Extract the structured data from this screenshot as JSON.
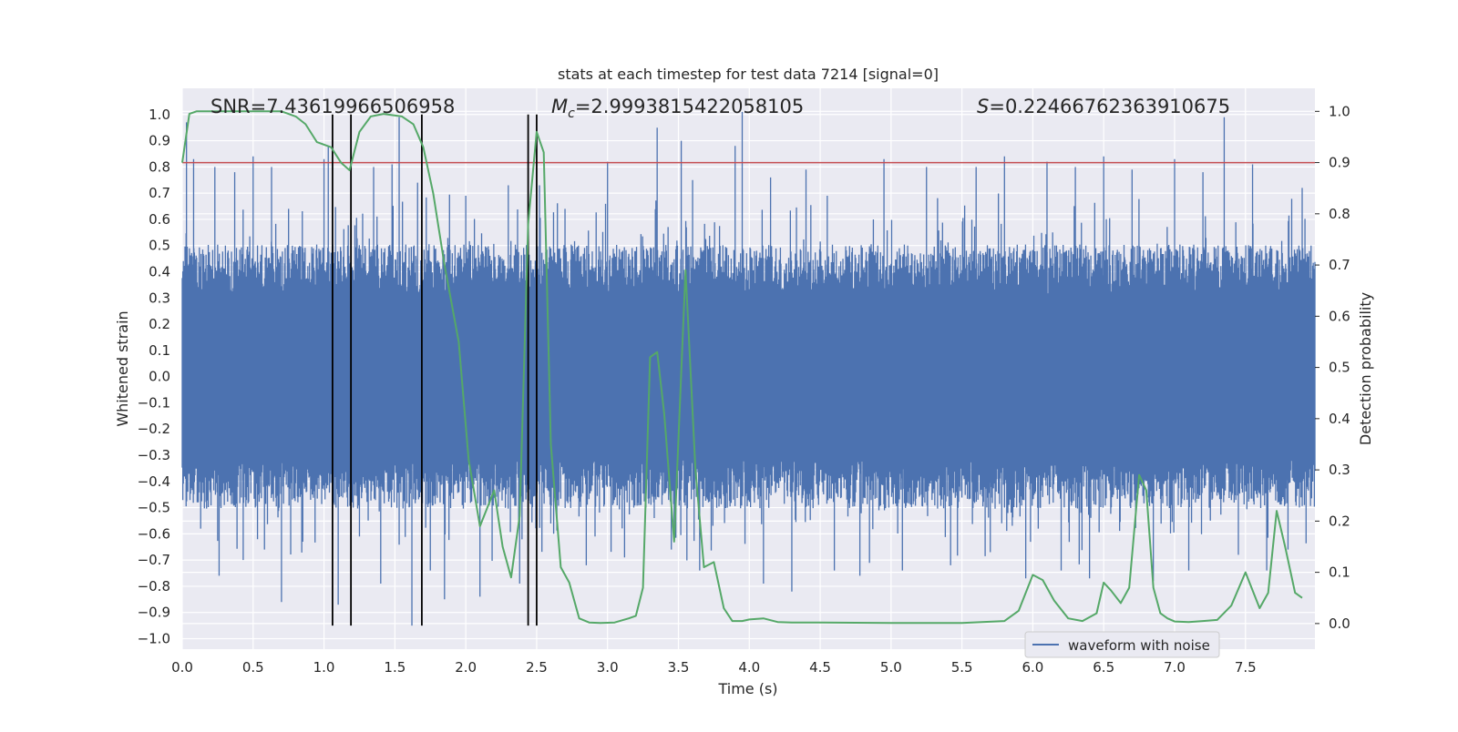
{
  "chart_data": {
    "type": "line",
    "title": "stats at each timestep for test data 7214 [signal=0]",
    "xlabel": "Time (s)",
    "ylabel": "Whitened strain",
    "y2label": "Detection probability",
    "xlim": [
      0,
      7.99
    ],
    "ylim": [
      -1.04,
      1.1
    ],
    "y2lim": [
      -0.05,
      1.045
    ],
    "xticks": [
      0.0,
      0.5,
      1.0,
      1.5,
      2.0,
      2.5,
      3.0,
      3.5,
      4.0,
      4.5,
      5.0,
      5.5,
      6.0,
      6.5,
      7.0,
      7.5
    ],
    "xtick_labels": [
      "0.0",
      "0.5",
      "1.0",
      "1.5",
      "2.0",
      "2.5",
      "3.0",
      "3.5",
      "4.0",
      "4.5",
      "5.0",
      "5.5",
      "6.0",
      "6.5",
      "7.0",
      "7.5"
    ],
    "yticks": [
      1.0,
      0.9,
      0.8,
      0.7,
      0.6,
      0.5,
      0.4,
      0.3,
      0.2,
      0.1,
      0.0,
      -0.1,
      -0.2,
      -0.3,
      -0.4,
      -0.5,
      -0.6,
      -0.7,
      -0.8,
      -0.9,
      -1.0
    ],
    "ytick_labels": [
      "1.0",
      "0.9",
      "0.8",
      "0.7",
      "0.6",
      "0.5",
      "0.4",
      "0.3",
      "0.2",
      "0.1",
      "0.0",
      "−0.1",
      "−0.2",
      "−0.3",
      "−0.4",
      "−0.5",
      "−0.6",
      "−0.7",
      "−0.8",
      "−0.9",
      "−1.0"
    ],
    "y2ticks": [
      1.0,
      0.9,
      0.8,
      0.7,
      0.6,
      0.5,
      0.4,
      0.3,
      0.2,
      0.1,
      0.0
    ],
    "y2tick_labels": [
      "1.0",
      "0.9",
      "0.8",
      "0.7",
      "0.6",
      "0.5",
      "0.4",
      "0.3",
      "0.2",
      "0.1",
      "0.0"
    ],
    "grid": true,
    "legend": {
      "placement": "lower-right",
      "entries": [
        "waveform with noise"
      ]
    },
    "annotations": {
      "snr": "SNR=7.43619966506958",
      "mc": "=2.9993815422058105",
      "mc_symbol": "M",
      "mc_sub": "c",
      "s": "=0.22466762363910675",
      "s_symbol": "S"
    },
    "threshold": {
      "axis": "y2",
      "value": 0.9,
      "color": "#c44e52"
    },
    "vlines": {
      "x": [
        1.06,
        1.19,
        1.69,
        2.44,
        2.5
      ],
      "ymin": -0.95,
      "ymax": 1.0,
      "color": "#000000"
    },
    "waveform": {
      "name": "waveform with noise",
      "color": "#4c72b0",
      "n_samples": 2048,
      "envelope_pos": 0.42,
      "envelope_neg": -0.42,
      "peaks": [
        [
          0.03,
          0.97
        ],
        [
          0.08,
          0.83
        ],
        [
          0.13,
          -0.58
        ],
        [
          0.23,
          0.8
        ],
        [
          0.26,
          -0.76
        ],
        [
          0.37,
          0.78
        ],
        [
          0.43,
          -0.7
        ],
        [
          0.5,
          0.84
        ],
        [
          0.58,
          -0.66
        ],
        [
          0.63,
          0.8
        ],
        [
          0.7,
          -0.86
        ],
        [
          0.75,
          0.64
        ],
        [
          0.85,
          -0.63
        ],
        [
          1.0,
          0.83
        ],
        [
          1.03,
          0.88
        ],
        [
          1.1,
          -0.87
        ],
        [
          1.25,
          -0.61
        ],
        [
          1.35,
          0.8
        ],
        [
          1.4,
          -0.79
        ],
        [
          1.48,
          0.81
        ],
        [
          1.53,
          0.99
        ],
        [
          1.62,
          -0.95
        ],
        [
          1.66,
          0.74
        ],
        [
          1.75,
          -0.74
        ],
        [
          1.85,
          -0.85
        ],
        [
          2.0,
          0.69
        ],
        [
          2.1,
          -0.84
        ],
        [
          2.3,
          0.73
        ],
        [
          2.38,
          -0.79
        ],
        [
          2.52,
          0.73
        ],
        [
          2.62,
          -0.6
        ],
        [
          2.7,
          0.64
        ],
        [
          2.85,
          -0.72
        ],
        [
          3.0,
          0.82
        ],
        [
          3.12,
          -0.69
        ],
        [
          3.35,
          0.95
        ],
        [
          3.45,
          -0.66
        ],
        [
          3.52,
          0.9
        ],
        [
          3.6,
          0.75
        ],
        [
          3.65,
          -0.74
        ],
        [
          3.9,
          0.88
        ],
        [
          3.95,
          1.01
        ],
        [
          4.1,
          -0.79
        ],
        [
          4.15,
          0.76
        ],
        [
          4.3,
          -0.82
        ],
        [
          4.4,
          0.79
        ],
        [
          4.55,
          0.69
        ],
        [
          4.6,
          -0.74
        ],
        [
          4.78,
          -0.76
        ],
        [
          4.95,
          0.83
        ],
        [
          5.08,
          -0.74
        ],
        [
          5.25,
          0.8
        ],
        [
          5.42,
          -0.72
        ],
        [
          5.6,
          0.8
        ],
        [
          5.7,
          -0.67
        ],
        [
          5.8,
          0.84
        ],
        [
          5.95,
          -0.77
        ],
        [
          6.1,
          0.82
        ],
        [
          6.2,
          -0.74
        ],
        [
          6.3,
          0.8
        ],
        [
          6.4,
          -0.77
        ],
        [
          6.5,
          0.84
        ],
        [
          6.7,
          0.79
        ],
        [
          6.85,
          -0.78
        ],
        [
          7.0,
          0.83
        ],
        [
          7.1,
          -0.74
        ],
        [
          7.2,
          0.78
        ],
        [
          7.35,
          0.99
        ],
        [
          7.45,
          -0.68
        ],
        [
          7.55,
          0.81
        ],
        [
          7.65,
          -0.74
        ],
        [
          7.8,
          -0.66
        ],
        [
          7.9,
          0.72
        ]
      ]
    },
    "detection_probability": {
      "color": "#55a868",
      "x": [
        0.0,
        0.05,
        0.1,
        0.3,
        0.5,
        0.7,
        0.8,
        0.87,
        0.95,
        1.05,
        1.12,
        1.18,
        1.25,
        1.33,
        1.42,
        1.55,
        1.63,
        1.7,
        1.77,
        1.85,
        1.95,
        2.02,
        2.1,
        2.2,
        2.26,
        2.32,
        2.38,
        2.44,
        2.5,
        2.55,
        2.6,
        2.67,
        2.73,
        2.8,
        2.87,
        2.95,
        3.05,
        3.15,
        3.2,
        3.25,
        3.3,
        3.35,
        3.4,
        3.47,
        3.55,
        3.62,
        3.68,
        3.75,
        3.82,
        3.88,
        3.95,
        4.0,
        4.1,
        4.2,
        4.3,
        4.5,
        5.0,
        5.5,
        5.8,
        5.9,
        6.0,
        6.07,
        6.15,
        6.25,
        6.35,
        6.45,
        6.5,
        6.55,
        6.62,
        6.68,
        6.75,
        6.8,
        6.85,
        6.9,
        6.95,
        7.0,
        7.1,
        7.2,
        7.3,
        7.4,
        7.5,
        7.55,
        7.6,
        7.66,
        7.72,
        7.78,
        7.85,
        7.9
      ],
      "y": [
        0.9,
        0.995,
        1.0,
        1.0,
        1.0,
        1.0,
        0.99,
        0.975,
        0.94,
        0.93,
        0.9,
        0.885,
        0.96,
        0.99,
        0.995,
        0.99,
        0.975,
        0.93,
        0.84,
        0.7,
        0.55,
        0.32,
        0.19,
        0.26,
        0.15,
        0.09,
        0.21,
        0.78,
        0.96,
        0.92,
        0.35,
        0.11,
        0.08,
        0.01,
        0.002,
        0.001,
        0.002,
        0.01,
        0.015,
        0.07,
        0.52,
        0.53,
        0.41,
        0.16,
        0.69,
        0.3,
        0.11,
        0.12,
        0.03,
        0.005,
        0.005,
        0.008,
        0.01,
        0.003,
        0.002,
        0.002,
        0.001,
        0.001,
        0.005,
        0.025,
        0.095,
        0.085,
        0.045,
        0.01,
        0.005,
        0.02,
        0.08,
        0.065,
        0.04,
        0.07,
        0.29,
        0.26,
        0.07,
        0.02,
        0.01,
        0.004,
        0.003,
        0.005,
        0.007,
        0.035,
        0.1,
        0.065,
        0.03,
        0.06,
        0.22,
        0.15,
        0.06,
        0.05
      ]
    }
  }
}
